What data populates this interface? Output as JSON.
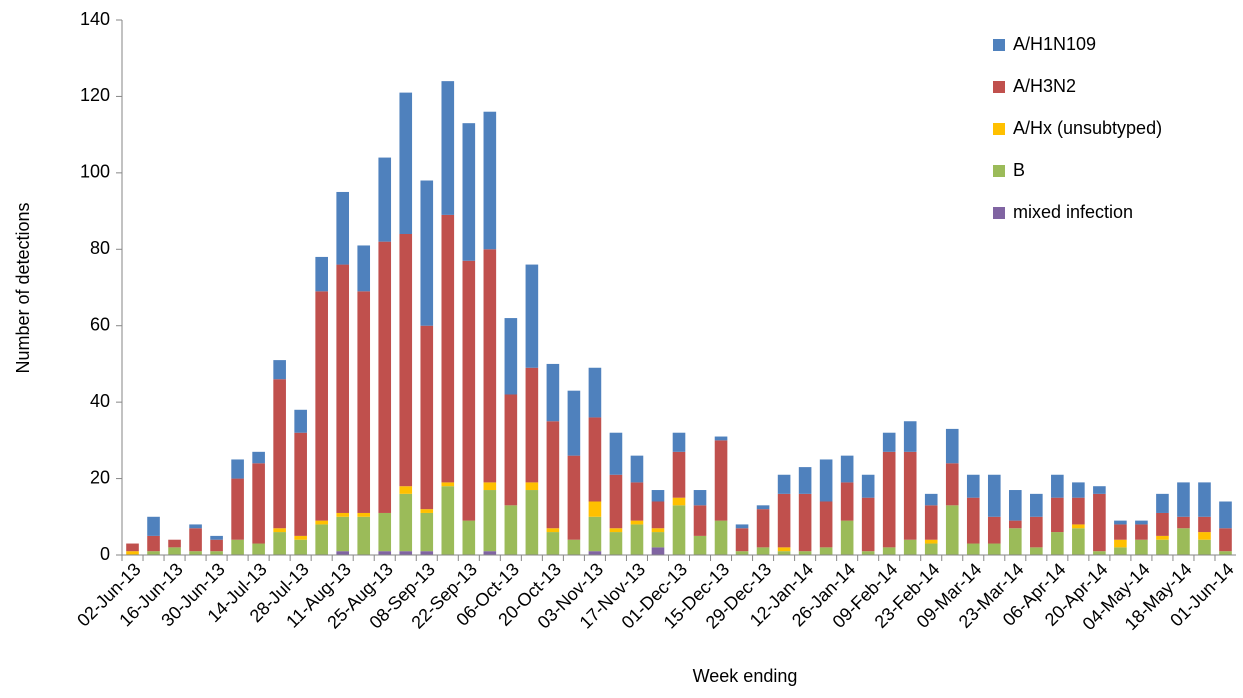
{
  "chart_data": {
    "type": "stacked_bar",
    "x_label": "Week ending",
    "y_label": "Number of detections",
    "categories": [
      "02-Jun-13",
      null,
      "16-Jun-13",
      null,
      "30-Jun-13",
      null,
      "14-Jul-13",
      null,
      "28-Jul-13",
      null,
      "11-Aug-13",
      null,
      "25-Aug-13",
      null,
      "08-Sep-13",
      null,
      "22-Sep-13",
      null,
      "06-Oct-13",
      null,
      "20-Oct-13",
      null,
      "03-Nov-13",
      null,
      "17-Nov-13",
      null,
      "01-Dec-13",
      null,
      "15-Dec-13",
      null,
      "29-Dec-13",
      null,
      "12-Jan-14",
      null,
      "26-Jan-14",
      null,
      "09-Feb-14",
      null,
      "23-Feb-14",
      null,
      "09-Mar-14",
      null,
      "23-Mar-14",
      null,
      "06-Apr-14",
      null,
      "20-Apr-14",
      null,
      "04-May-14",
      null,
      "18-May-14",
      null,
      "01-Jun-14"
    ],
    "series": [
      {
        "name": "A/H1N109",
        "color": "#4f81bd",
        "values": [
          0,
          5,
          0,
          1,
          1,
          5,
          3,
          5,
          6,
          9,
          19,
          12,
          22,
          37,
          38,
          35,
          36,
          36,
          20,
          27,
          15,
          17,
          13,
          11,
          7,
          3,
          5,
          4,
          1,
          1,
          1,
          5,
          7,
          11,
          7,
          6,
          5,
          8,
          3,
          9,
          6,
          11,
          8,
          6,
          6,
          4,
          2,
          1,
          1,
          5,
          9,
          9,
          7
        ]
      },
      {
        "name": "A/H3N2",
        "color": "#c0504d",
        "values": [
          2,
          4,
          2,
          6,
          3,
          16,
          21,
          39,
          27,
          60,
          65,
          58,
          71,
          66,
          48,
          70,
          68,
          61,
          29,
          30,
          28,
          22,
          22,
          14,
          10,
          7,
          12,
          8,
          21,
          6,
          10,
          14,
          15,
          12,
          10,
          14,
          25,
          23,
          9,
          11,
          12,
          7,
          2,
          8,
          9,
          7,
          15,
          4,
          4,
          6,
          3,
          4,
          6
        ]
      },
      {
        "name": "A/Hx (unsubtyped)",
        "color": "#ffc000",
        "values": [
          1,
          0,
          0,
          0,
          0,
          0,
          0,
          1,
          1,
          1,
          1,
          1,
          0,
          2,
          1,
          1,
          0,
          2,
          0,
          2,
          1,
          0,
          4,
          1,
          1,
          1,
          2,
          0,
          0,
          0,
          0,
          1,
          0,
          0,
          0,
          0,
          0,
          0,
          1,
          0,
          0,
          0,
          0,
          0,
          0,
          1,
          0,
          2,
          0,
          1,
          0,
          2,
          0
        ]
      },
      {
        "name": "B",
        "color": "#9bbb59",
        "values": [
          0,
          1,
          2,
          1,
          1,
          4,
          3,
          6,
          4,
          8,
          9,
          10,
          10,
          15,
          10,
          18,
          9,
          16,
          13,
          17,
          6,
          4,
          9,
          6,
          8,
          4,
          13,
          5,
          9,
          1,
          2,
          1,
          1,
          2,
          9,
          1,
          2,
          4,
          3,
          13,
          3,
          3,
          7,
          2,
          6,
          7,
          1,
          2,
          4,
          4,
          7,
          4,
          1
        ]
      },
      {
        "name": "mixed infection",
        "color": "#8064a2",
        "values": [
          0,
          0,
          0,
          0,
          0,
          0,
          0,
          0,
          0,
          0,
          1,
          0,
          1,
          1,
          1,
          0,
          0,
          1,
          0,
          0,
          0,
          0,
          1,
          0,
          0,
          2,
          0,
          0,
          0,
          0,
          0,
          0,
          0,
          0,
          0,
          0,
          0,
          0,
          0,
          0,
          0,
          0,
          0,
          0,
          0,
          0,
          0,
          0,
          0,
          0,
          0,
          0,
          0
        ]
      }
    ],
    "ylim": [
      0,
      140
    ],
    "yticks": [
      0,
      20,
      40,
      60,
      80,
      100,
      120,
      140
    ],
    "legend": "upper right",
    "grid": false
  }
}
